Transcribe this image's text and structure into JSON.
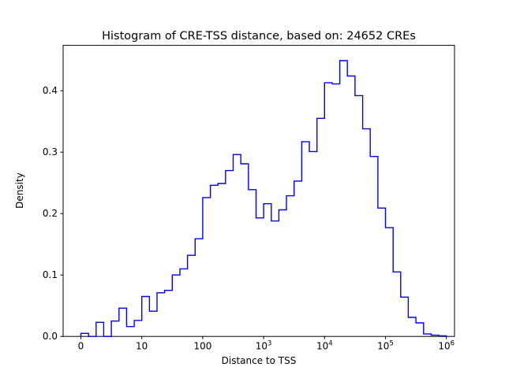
{
  "figure": {
    "title": "Histogram of CRE-TSS distance, based on: 24652 CREs",
    "xlabel": "Distance to TSS",
    "ylabel": "Density"
  },
  "colors": {
    "line": "#0000ff",
    "spine": "#000000",
    "background": "#ffffff",
    "tick_label": "#000000"
  },
  "chart_data": {
    "type": "bar",
    "subtype": "step-histogram",
    "title": "Histogram of CRE-TSS distance, based on: 24652 CREs",
    "xlabel": "Distance to TSS",
    "ylabel": "Density",
    "xscale": "symlog",
    "linthresh": 10,
    "xlim": [
      0,
      1000000
    ],
    "ylim": [
      0,
      0.4735
    ],
    "grid": false,
    "legend": false,
    "n_samples_label": "24652 CREs",
    "bin_edges": [
      0,
      1.25,
      2.5,
      3.75,
      5,
      6.25,
      7.5,
      8.75,
      10,
      13.34,
      17.78,
      23.71,
      31.62,
      42.17,
      56.23,
      74.99,
      100,
      133.4,
      177.8,
      237.1,
      316.2,
      421.7,
      562.3,
      749.9,
      1000,
      1334,
      1778,
      2371,
      3162,
      4217,
      5623,
      7499,
      10000,
      13340,
      17780,
      23710,
      31620,
      42170,
      56230,
      74990,
      100000,
      133400,
      177800,
      237100,
      316200,
      421700,
      562300,
      749900,
      1000000
    ],
    "densities": [
      0.005,
      0.0,
      0.023,
      0.0,
      0.025,
      0.046,
      0.016,
      0.026,
      0.065,
      0.041,
      0.071,
      0.075,
      0.1,
      0.11,
      0.132,
      0.159,
      0.226,
      0.246,
      0.249,
      0.27,
      0.296,
      0.281,
      0.239,
      0.193,
      0.216,
      0.188,
      0.206,
      0.229,
      0.253,
      0.317,
      0.301,
      0.355,
      0.413,
      0.411,
      0.449,
      0.424,
      0.392,
      0.338,
      0.293,
      0.209,
      0.177,
      0.105,
      0.064,
      0.031,
      0.022,
      0.004,
      0.002,
      0.001
    ],
    "x_ticks": [
      {
        "label": "0",
        "t": 0
      },
      {
        "label": "10",
        "t": 1
      },
      {
        "label": "100",
        "t": 2
      },
      {
        "label": "10",
        "sup": "3",
        "t": 3
      },
      {
        "label": "10",
        "sup": "4",
        "t": 4
      },
      {
        "label": "10",
        "sup": "5",
        "t": 5
      },
      {
        "label": "10",
        "sup": "6",
        "t": 6
      }
    ],
    "y_ticks": [
      {
        "label": "0.0",
        "v": 0.0
      },
      {
        "label": "0.1",
        "v": 0.1
      },
      {
        "label": "0.2",
        "v": 0.2
      },
      {
        "label": "0.3",
        "v": 0.3
      },
      {
        "label": "0.4",
        "v": 0.4
      }
    ]
  }
}
